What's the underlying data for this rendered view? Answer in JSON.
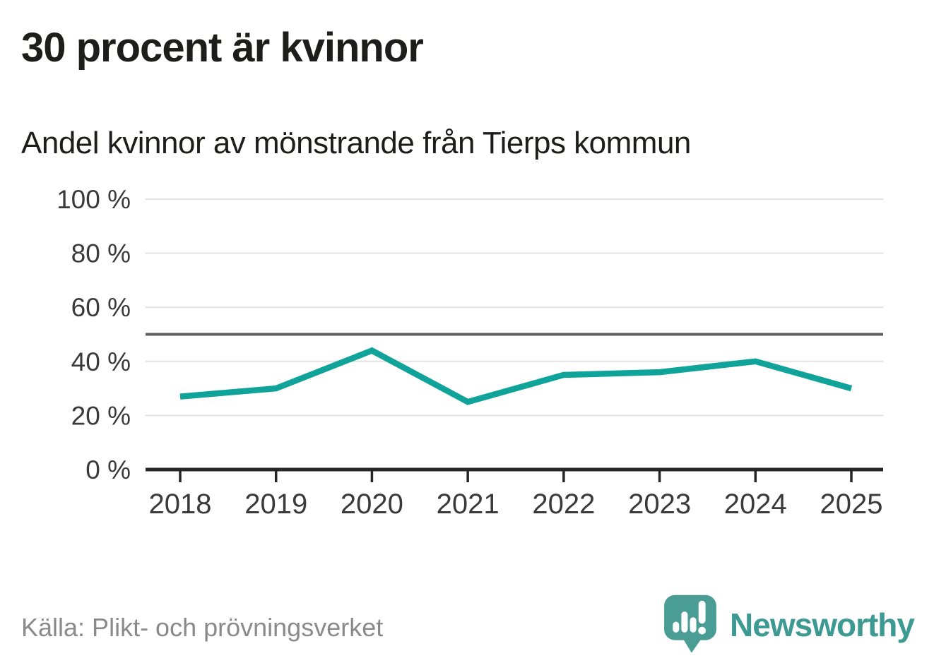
{
  "chart_data": {
    "type": "line",
    "title": "30 procent är kvinnor",
    "subtitle": "Andel kvinnor av mönstrande från Tierps kommun",
    "x": [
      "2018",
      "2019",
      "2020",
      "2021",
      "2022",
      "2023",
      "2024",
      "2025"
    ],
    "series": [
      {
        "name": "Andel kvinnor av mönstrande",
        "color": "#0fa39a",
        "values": [
          27,
          30,
          44,
          25,
          35,
          36,
          40,
          30
        ]
      }
    ],
    "unit": "%",
    "ylim": [
      0,
      100
    ],
    "yticks": [
      0,
      20,
      40,
      60,
      80,
      100
    ],
    "ytick_suffix": " %",
    "reference_line": {
      "value": 50,
      "color": "#5f5f5f"
    },
    "grid": true,
    "legend": "none",
    "gridline_color": "#e2e2e2",
    "axis_color": "#262626",
    "tick_label_color": "#3a3a3a"
  },
  "footer": {
    "source": "Källa: Plikt- och prövningsverket",
    "brand": "Newsworthy",
    "brand_color": "#3d9a92",
    "brand_icon": "newsworthy-speech-bubble-bar-chart"
  }
}
